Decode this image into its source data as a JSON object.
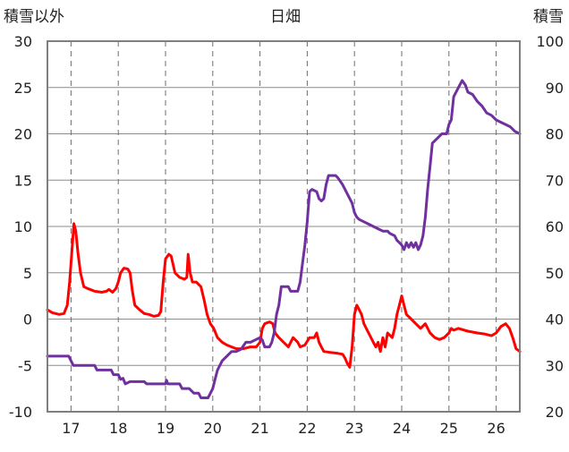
{
  "chart_data": {
    "type": "line",
    "title": "日畑",
    "left_axis_label": "積雪以外",
    "right_axis_label": "積雪",
    "x": {
      "min": 16.5,
      "max": 26.5,
      "ticks": [
        17,
        18,
        19,
        20,
        21,
        22,
        23,
        24,
        25,
        26
      ],
      "tick_labels": [
        "17",
        "18",
        "19",
        "20",
        "21",
        "22",
        "23",
        "24",
        "25",
        "26"
      ]
    },
    "y_left": {
      "min": -10,
      "max": 30,
      "ticks": [
        -10,
        -5,
        0,
        5,
        10,
        15,
        20,
        25,
        30
      ],
      "tick_labels": [
        "-10",
        "-5",
        "0",
        "5",
        "10",
        "15",
        "20",
        "25",
        "30"
      ]
    },
    "y_right": {
      "min": 20,
      "max": 100,
      "ticks": [
        20,
        30,
        40,
        50,
        60,
        70,
        80,
        90,
        100
      ],
      "tick_labels": [
        "20",
        "30",
        "40",
        "50",
        "60",
        "70",
        "80",
        "90",
        "100"
      ]
    },
    "grid": {
      "vertical": "dashed",
      "horizontal": "solid"
    },
    "series": [
      {
        "axis": "left",
        "color": "#ff0000",
        "points": [
          [
            16.5,
            1.0
          ],
          [
            16.6,
            0.7
          ],
          [
            16.75,
            0.5
          ],
          [
            16.85,
            0.6
          ],
          [
            16.92,
            1.5
          ],
          [
            16.97,
            4.0
          ],
          [
            17.02,
            7.5
          ],
          [
            17.06,
            10.3
          ],
          [
            17.1,
            9.5
          ],
          [
            17.15,
            7.0
          ],
          [
            17.2,
            5.0
          ],
          [
            17.27,
            3.5
          ],
          [
            17.35,
            3.3
          ],
          [
            17.5,
            3.0
          ],
          [
            17.65,
            2.9
          ],
          [
            17.75,
            3.0
          ],
          [
            17.8,
            3.2
          ],
          [
            17.88,
            2.9
          ],
          [
            17.95,
            3.3
          ],
          [
            18.0,
            4.0
          ],
          [
            18.05,
            5.0
          ],
          [
            18.12,
            5.5
          ],
          [
            18.2,
            5.4
          ],
          [
            18.25,
            5.0
          ],
          [
            18.3,
            3.0
          ],
          [
            18.35,
            1.5
          ],
          [
            18.45,
            1.0
          ],
          [
            18.55,
            0.6
          ],
          [
            18.65,
            0.5
          ],
          [
            18.75,
            0.3
          ],
          [
            18.85,
            0.4
          ],
          [
            18.9,
            0.8
          ],
          [
            18.95,
            4.0
          ],
          [
            19.0,
            6.5
          ],
          [
            19.07,
            7.0
          ],
          [
            19.12,
            6.8
          ],
          [
            19.2,
            5.0
          ],
          [
            19.3,
            4.5
          ],
          [
            19.4,
            4.3
          ],
          [
            19.45,
            4.5
          ],
          [
            19.48,
            7.0
          ],
          [
            19.52,
            5.0
          ],
          [
            19.57,
            4.0
          ],
          [
            19.65,
            4.0
          ],
          [
            19.75,
            3.5
          ],
          [
            19.82,
            2.0
          ],
          [
            19.88,
            0.5
          ],
          [
            19.95,
            -0.5
          ],
          [
            20.02,
            -1.0
          ],
          [
            20.1,
            -2.0
          ],
          [
            20.2,
            -2.5
          ],
          [
            20.3,
            -2.8
          ],
          [
            20.4,
            -3.0
          ],
          [
            20.5,
            -3.2
          ],
          [
            20.65,
            -3.2
          ],
          [
            20.8,
            -3.0
          ],
          [
            20.92,
            -3.0
          ],
          [
            21.0,
            -2.5
          ],
          [
            21.05,
            -1.0
          ],
          [
            21.1,
            -0.5
          ],
          [
            21.2,
            -0.3
          ],
          [
            21.27,
            -0.5
          ],
          [
            21.32,
            -1.5
          ],
          [
            21.4,
            -2.0
          ],
          [
            21.5,
            -2.5
          ],
          [
            21.6,
            -3.0
          ],
          [
            21.7,
            -2.0
          ],
          [
            21.8,
            -2.5
          ],
          [
            21.85,
            -3.0
          ],
          [
            21.95,
            -2.8
          ],
          [
            22.05,
            -2.0
          ],
          [
            22.15,
            -2.0
          ],
          [
            22.2,
            -1.5
          ],
          [
            22.25,
            -2.5
          ],
          [
            22.3,
            -3.0
          ],
          [
            22.35,
            -3.5
          ],
          [
            22.5,
            -3.6
          ],
          [
            22.65,
            -3.7
          ],
          [
            22.75,
            -3.8
          ],
          [
            22.8,
            -4.2
          ],
          [
            22.85,
            -4.8
          ],
          [
            22.9,
            -5.2
          ],
          [
            22.95,
            -3.0
          ],
          [
            23.0,
            0.5
          ],
          [
            23.05,
            1.5
          ],
          [
            23.1,
            1.0
          ],
          [
            23.15,
            0.5
          ],
          [
            23.2,
            -0.5
          ],
          [
            23.25,
            -1.0
          ],
          [
            23.3,
            -1.5
          ],
          [
            23.4,
            -2.5
          ],
          [
            23.45,
            -3.0
          ],
          [
            23.5,
            -2.5
          ],
          [
            23.55,
            -3.5
          ],
          [
            23.6,
            -2.0
          ],
          [
            23.65,
            -3.0
          ],
          [
            23.7,
            -1.5
          ],
          [
            23.8,
            -2.0
          ],
          [
            23.85,
            -1.0
          ],
          [
            23.9,
            0.5
          ],
          [
            23.95,
            1.5
          ],
          [
            24.0,
            2.5
          ],
          [
            24.05,
            1.5
          ],
          [
            24.1,
            0.5
          ],
          [
            24.2,
            0.0
          ],
          [
            24.3,
            -0.5
          ],
          [
            24.4,
            -1.0
          ],
          [
            24.5,
            -0.5
          ],
          [
            24.6,
            -1.5
          ],
          [
            24.7,
            -2.0
          ],
          [
            24.8,
            -2.2
          ],
          [
            24.9,
            -2.0
          ],
          [
            25.0,
            -1.5
          ],
          [
            25.05,
            -1.0
          ],
          [
            25.1,
            -1.2
          ],
          [
            25.2,
            -1.0
          ],
          [
            25.4,
            -1.3
          ],
          [
            25.6,
            -1.5
          ],
          [
            25.75,
            -1.6
          ],
          [
            25.9,
            -1.8
          ],
          [
            26.0,
            -1.5
          ],
          [
            26.1,
            -0.8
          ],
          [
            26.2,
            -0.5
          ],
          [
            26.28,
            -1.0
          ],
          [
            26.35,
            -2.0
          ],
          [
            26.42,
            -3.2
          ],
          [
            26.5,
            -3.5
          ]
        ]
      },
      {
        "axis": "right",
        "color": "#7030a0",
        "points": [
          [
            16.5,
            32.0
          ],
          [
            16.95,
            32.0
          ],
          [
            17.05,
            30.0
          ],
          [
            17.5,
            30.0
          ],
          [
            17.55,
            29.0
          ],
          [
            17.85,
            29.0
          ],
          [
            17.9,
            28.0
          ],
          [
            18.0,
            28.0
          ],
          [
            18.05,
            27.0
          ],
          [
            18.1,
            27.2
          ],
          [
            18.15,
            26.0
          ],
          [
            18.25,
            26.5
          ],
          [
            18.55,
            26.5
          ],
          [
            18.6,
            26.0
          ],
          [
            19.0,
            26.0
          ],
          [
            19.02,
            26.8
          ],
          [
            19.05,
            26.0
          ],
          [
            19.3,
            26.0
          ],
          [
            19.35,
            25.0
          ],
          [
            19.5,
            25.0
          ],
          [
            19.6,
            24.0
          ],
          [
            19.7,
            24.0
          ],
          [
            19.75,
            23.0
          ],
          [
            19.9,
            23.0
          ],
          [
            19.95,
            24.0
          ],
          [
            20.0,
            25.0
          ],
          [
            20.05,
            27.0
          ],
          [
            20.1,
            29.0
          ],
          [
            20.2,
            31.0
          ],
          [
            20.3,
            32.0
          ],
          [
            20.4,
            33.0
          ],
          [
            20.5,
            33.0
          ],
          [
            20.6,
            33.5
          ],
          [
            20.7,
            35.0
          ],
          [
            20.8,
            35.0
          ],
          [
            20.9,
            35.5
          ],
          [
            21.0,
            36.0
          ],
          [
            21.05,
            35.5
          ],
          [
            21.1,
            34.0
          ],
          [
            21.2,
            34.0
          ],
          [
            21.25,
            35.0
          ],
          [
            21.3,
            37.0
          ],
          [
            21.35,
            41.0
          ],
          [
            21.4,
            43.0
          ],
          [
            21.45,
            47.0
          ],
          [
            21.6,
            47.0
          ],
          [
            21.65,
            46.0
          ],
          [
            21.8,
            46.0
          ],
          [
            21.85,
            48.0
          ],
          [
            21.9,
            52.0
          ],
          [
            21.95,
            56.0
          ],
          [
            22.0,
            61.0
          ],
          [
            22.05,
            67.5
          ],
          [
            22.1,
            68.0
          ],
          [
            22.2,
            67.5
          ],
          [
            22.25,
            66.0
          ],
          [
            22.3,
            65.5
          ],
          [
            22.35,
            66.0
          ],
          [
            22.4,
            69.0
          ],
          [
            22.45,
            71.0
          ],
          [
            22.6,
            71.0
          ],
          [
            22.65,
            70.5
          ],
          [
            22.75,
            69.0
          ],
          [
            22.85,
            67.0
          ],
          [
            22.95,
            65.0
          ],
          [
            23.0,
            63.0
          ],
          [
            23.05,
            62.0
          ],
          [
            23.1,
            61.5
          ],
          [
            23.2,
            61.0
          ],
          [
            23.3,
            60.5
          ],
          [
            23.4,
            60.0
          ],
          [
            23.5,
            59.5
          ],
          [
            23.6,
            59.0
          ],
          [
            23.7,
            59.0
          ],
          [
            23.75,
            58.5
          ],
          [
            23.85,
            58.0
          ],
          [
            23.9,
            57.0
          ],
          [
            23.95,
            56.5
          ],
          [
            24.0,
            56.0
          ],
          [
            24.05,
            55.0
          ],
          [
            24.1,
            56.5
          ],
          [
            24.15,
            55.5
          ],
          [
            24.2,
            56.5
          ],
          [
            24.25,
            55.5
          ],
          [
            24.3,
            56.5
          ],
          [
            24.35,
            55.0
          ],
          [
            24.4,
            56.0
          ],
          [
            24.45,
            58.0
          ],
          [
            24.5,
            62.0
          ],
          [
            24.55,
            68.0
          ],
          [
            24.6,
            73.0
          ],
          [
            24.65,
            78.0
          ],
          [
            24.75,
            79.0
          ],
          [
            24.85,
            80.0
          ],
          [
            24.95,
            80.0
          ],
          [
            25.0,
            82.0
          ],
          [
            25.05,
            83.0
          ],
          [
            25.1,
            88.0
          ],
          [
            25.2,
            90.0
          ],
          [
            25.28,
            91.5
          ],
          [
            25.35,
            90.5
          ],
          [
            25.4,
            89.0
          ],
          [
            25.5,
            88.5
          ],
          [
            25.6,
            87.0
          ],
          [
            25.7,
            86.0
          ],
          [
            25.8,
            84.5
          ],
          [
            25.9,
            84.0
          ],
          [
            26.0,
            83.0
          ],
          [
            26.1,
            82.5
          ],
          [
            26.2,
            82.0
          ],
          [
            26.3,
            81.5
          ],
          [
            26.4,
            80.5
          ],
          [
            26.5,
            80.0
          ]
        ]
      }
    ]
  }
}
